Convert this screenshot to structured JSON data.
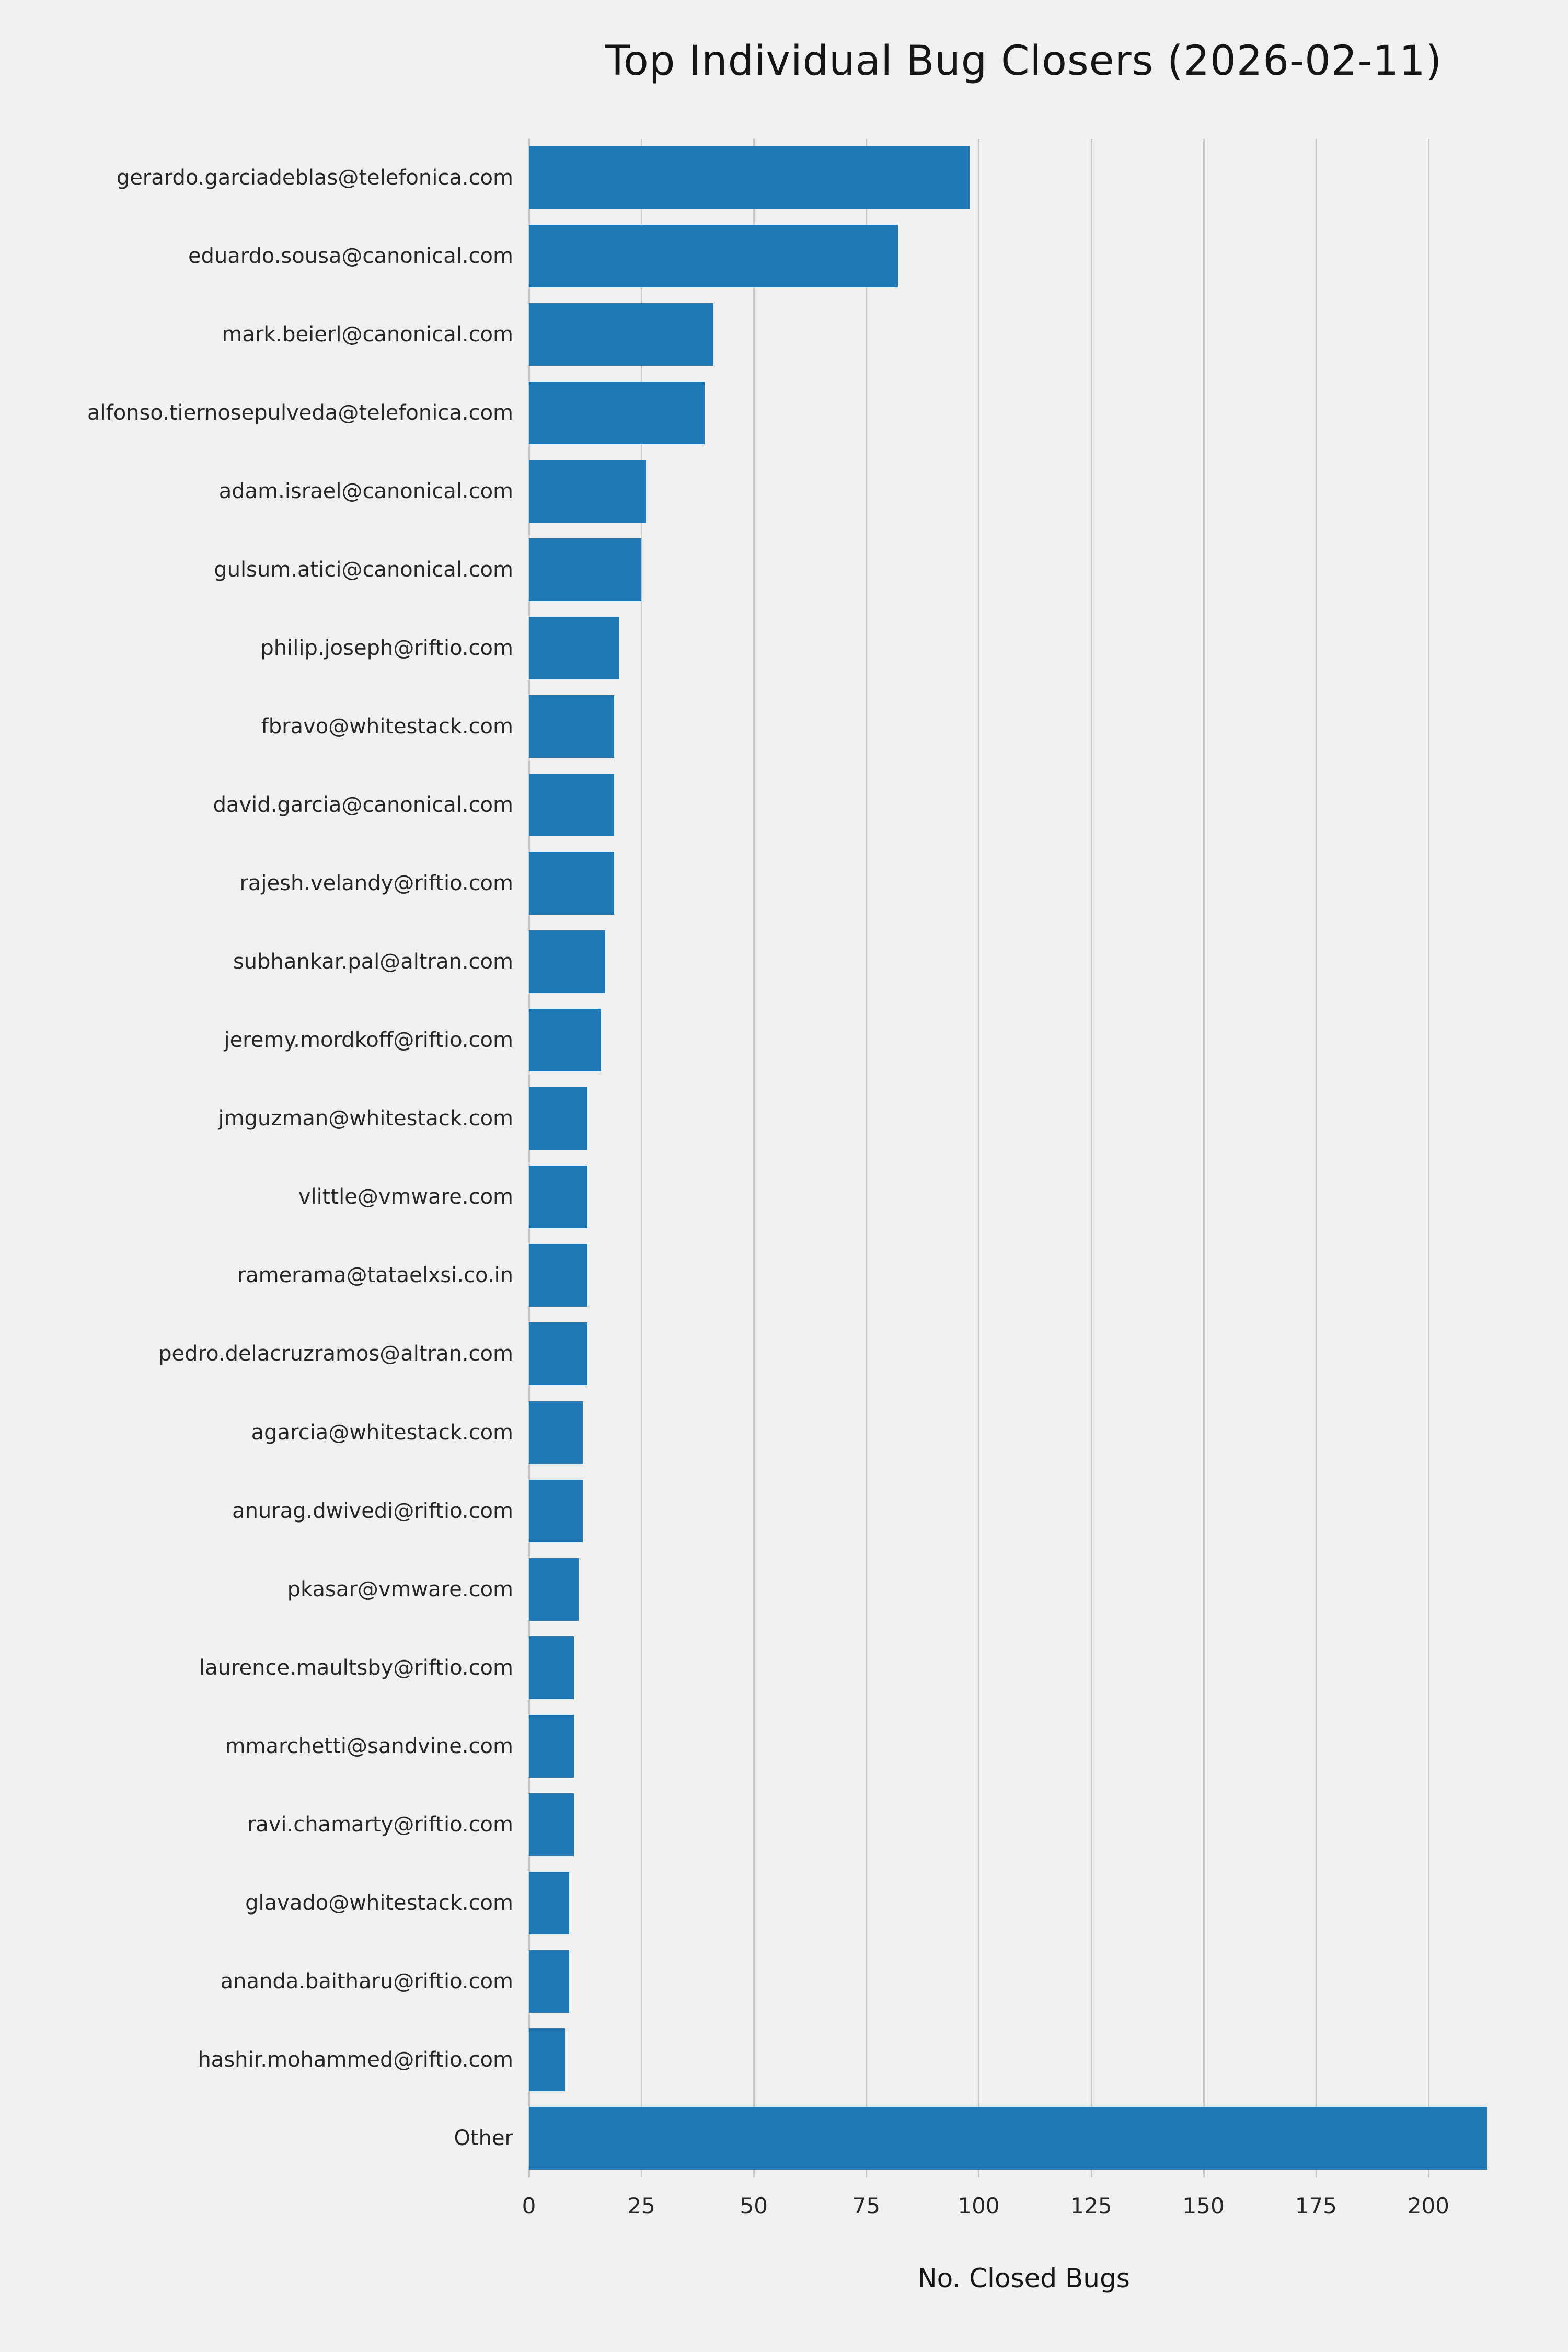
{
  "chart_data": {
    "type": "bar",
    "orientation": "horizontal",
    "title": "Top Individual Bug Closers (2026-02-11)",
    "xlabel": "No. Closed Bugs",
    "ylabel": "",
    "categories": [
      "gerardo.garciadeblas@telefonica.com",
      "eduardo.sousa@canonical.com",
      "mark.beierl@canonical.com",
      "alfonso.tiernosepulveda@telefonica.com",
      "adam.israel@canonical.com",
      "gulsum.atici@canonical.com",
      "philip.joseph@riftio.com",
      "fbravo@whitestack.com",
      "david.garcia@canonical.com",
      "rajesh.velandy@riftio.com",
      "subhankar.pal@altran.com",
      "jeremy.mordkoff@riftio.com",
      "jmguzman@whitestack.com",
      "vlittle@vmware.com",
      "ramerama@tataelxsi.co.in",
      "pedro.delacruzramos@altran.com",
      "agarcia@whitestack.com",
      "anurag.dwivedi@riftio.com",
      "pkasar@vmware.com",
      "laurence.maultsby@riftio.com",
      "mmarchetti@sandvine.com",
      "ravi.chamarty@riftio.com",
      "glavado@whitestack.com",
      "ananda.baitharu@riftio.com",
      "hashir.mohammed@riftio.com",
      "Other"
    ],
    "values": [
      98,
      82,
      41,
      39,
      26,
      25,
      20,
      19,
      19,
      19,
      17,
      16,
      13,
      13,
      13,
      13,
      12,
      12,
      11,
      10,
      10,
      10,
      9,
      9,
      8,
      213
    ],
    "xticks": [
      0,
      25,
      50,
      75,
      100,
      125,
      150,
      175,
      200
    ],
    "xlim": [
      0,
      220
    ],
    "grid": "vertical",
    "legend": "none",
    "bar_color": "#1f77b4",
    "background_color": "#f0f0f0",
    "grid_color": "#c8c8c8"
  }
}
